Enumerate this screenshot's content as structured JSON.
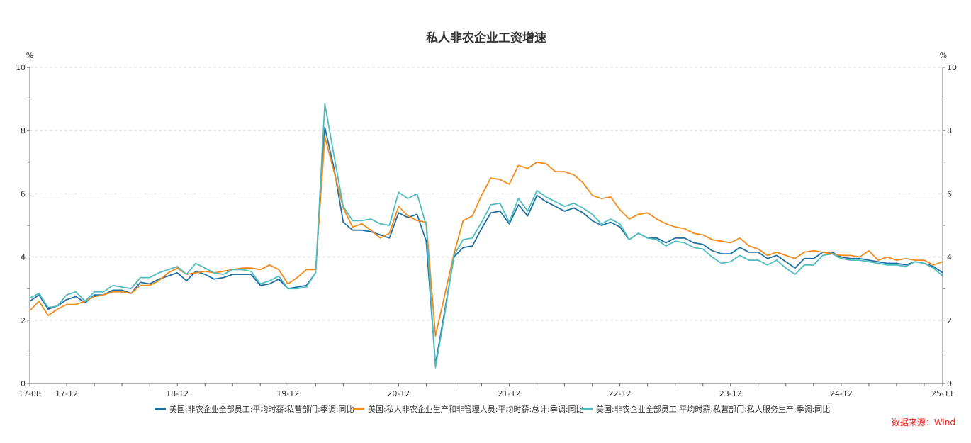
{
  "chart_data": {
    "type": "line",
    "title": "私人非农企业工资增速",
    "ylabel_left": "%",
    "ylabel_right": "%",
    "ylim": [
      0,
      10
    ],
    "yticks": [
      "0",
      "2",
      "4",
      "6",
      "8",
      "10"
    ],
    "x_start": "2017-08",
    "x_end": "2025-11",
    "xtick_labels": [
      "17-08",
      "17-12",
      "18-12",
      "19-12",
      "20-12",
      "21-12",
      "22-12",
      "23-12",
      "24-12",
      "25-11"
    ],
    "grid": true,
    "legend_position": "bottom",
    "source": "数据来源：Wind",
    "series": [
      {
        "name": "美国:非农企业全部员工:平均时薪:私营部门:季调:同比",
        "color": "#1f6fa3",
        "values": [
          2.6,
          2.8,
          2.35,
          2.45,
          2.65,
          2.75,
          2.55,
          2.8,
          2.8,
          2.95,
          2.95,
          2.85,
          3.2,
          3.15,
          3.3,
          3.4,
          3.5,
          3.25,
          3.55,
          3.45,
          3.3,
          3.35,
          3.45,
          3.45,
          3.45,
          3.1,
          3.15,
          3.3,
          3.0,
          3.05,
          3.1,
          3.5,
          8.1,
          6.8,
          5.1,
          4.85,
          4.85,
          4.8,
          4.7,
          4.6,
          5.4,
          5.25,
          5.35,
          4.5,
          0.6,
          2.3,
          4.0,
          4.3,
          4.35,
          4.9,
          5.4,
          5.45,
          5.05,
          5.65,
          5.3,
          5.95,
          5.75,
          5.6,
          5.45,
          5.55,
          5.4,
          5.15,
          5.0,
          5.1,
          4.95,
          4.55,
          4.75,
          4.6,
          4.6,
          4.45,
          4.6,
          4.6,
          4.45,
          4.4,
          4.2,
          4.1,
          4.1,
          4.3,
          4.15,
          4.15,
          3.95,
          4.05,
          3.85,
          3.65,
          3.95,
          3.95,
          4.15,
          4.15,
          4.0,
          3.95,
          3.95,
          3.9,
          3.85,
          3.8,
          3.8,
          3.75,
          3.85,
          3.8,
          3.7,
          3.5
        ]
      },
      {
        "name": "美国:私人非农企业生产和非管理人员:平均时薪:总计:季调:同比",
        "color": "#f28a1c",
        "values": [
          2.3,
          2.6,
          2.15,
          2.35,
          2.5,
          2.5,
          2.6,
          2.75,
          2.8,
          2.9,
          2.9,
          2.85,
          3.1,
          3.1,
          3.25,
          3.5,
          3.65,
          3.45,
          3.5,
          3.55,
          3.5,
          3.55,
          3.6,
          3.65,
          3.65,
          3.6,
          3.75,
          3.6,
          3.15,
          3.35,
          3.6,
          3.6,
          7.8,
          6.7,
          5.55,
          4.95,
          5.05,
          4.85,
          4.6,
          4.75,
          5.6,
          5.3,
          5.15,
          5.1,
          1.5,
          2.8,
          4.1,
          5.15,
          5.3,
          5.95,
          6.5,
          6.45,
          6.3,
          6.9,
          6.8,
          7.0,
          6.95,
          6.7,
          6.7,
          6.6,
          6.35,
          5.95,
          5.85,
          5.9,
          5.5,
          5.2,
          5.35,
          5.4,
          5.2,
          5.05,
          4.95,
          4.9,
          4.75,
          4.7,
          4.55,
          4.5,
          4.45,
          4.6,
          4.35,
          4.25,
          4.05,
          4.15,
          4.05,
          3.95,
          4.15,
          4.2,
          4.15,
          4.1,
          4.05,
          4.05,
          4.0,
          4.2,
          3.9,
          4.0,
          3.9,
          3.95,
          3.9,
          3.9,
          3.75,
          3.85
        ]
      },
      {
        "name": "美国:非农企业全部员工:平均时薪:私营部门:私人服务生产:季调:同比",
        "color": "#4fbcbf",
        "values": [
          2.7,
          2.85,
          2.4,
          2.45,
          2.8,
          2.9,
          2.6,
          2.9,
          2.9,
          3.1,
          3.05,
          3.0,
          3.35,
          3.35,
          3.5,
          3.6,
          3.7,
          3.45,
          3.8,
          3.65,
          3.5,
          3.45,
          3.6,
          3.6,
          3.55,
          3.15,
          3.25,
          3.4,
          3.0,
          3.0,
          3.05,
          3.5,
          8.85,
          7.2,
          5.6,
          5.15,
          5.15,
          5.2,
          5.05,
          5.0,
          6.05,
          5.85,
          6.0,
          5.0,
          0.5,
          2.2,
          4.05,
          4.55,
          4.6,
          5.1,
          5.65,
          5.7,
          5.1,
          5.85,
          5.45,
          6.1,
          5.9,
          5.75,
          5.6,
          5.7,
          5.55,
          5.35,
          5.05,
          5.2,
          5.05,
          4.55,
          4.75,
          4.6,
          4.55,
          4.35,
          4.5,
          4.45,
          4.3,
          4.25,
          4.0,
          3.8,
          3.85,
          4.05,
          3.9,
          3.9,
          3.75,
          3.9,
          3.65,
          3.45,
          3.75,
          3.75,
          4.05,
          4.1,
          3.95,
          3.9,
          3.9,
          3.85,
          3.8,
          3.75,
          3.75,
          3.7,
          3.85,
          3.8,
          3.65,
          3.4
        ]
      }
    ]
  }
}
